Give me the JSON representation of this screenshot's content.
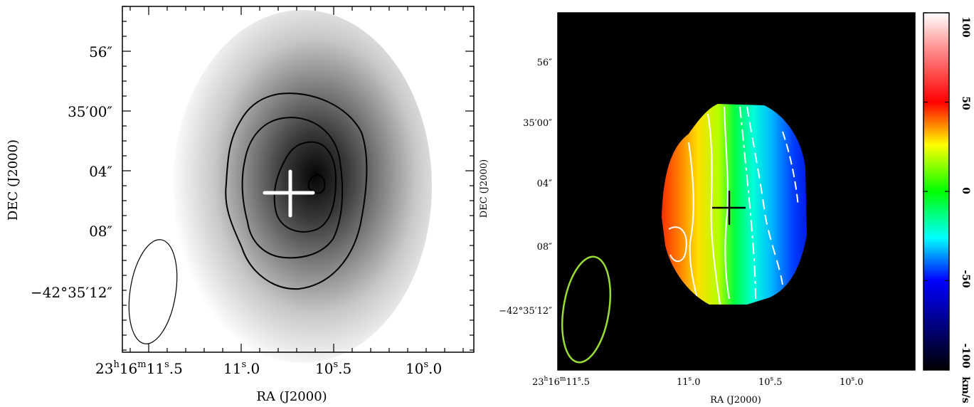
{
  "chart_data": [
    {
      "type": "heatmap",
      "panel": "left",
      "title": "",
      "xlabel": "RA (J2000)",
      "ylabel": "DEC (J2000)",
      "x_ticks": [
        {
          "value": "23h16m11.5s",
          "label": "23^h16^m11^s.5"
        },
        {
          "value": "23h16m11.0s",
          "label": "11^s.0"
        },
        {
          "value": "23h16m10.5s",
          "label": "10^s.5"
        },
        {
          "value": "23h16m10.0s",
          "label": "10^s.0"
        }
      ],
      "y_ticks": [
        {
          "value": "-42d34m56s",
          "label": "56″"
        },
        {
          "value": "-42d35m00s",
          "label": "35′ 00″"
        },
        {
          "value": "-42d35m04s",
          "label": "04″"
        },
        {
          "value": "-42d35m08s",
          "label": "08″"
        },
        {
          "value": "-42d35m12s",
          "label": "−42° 35′ 12″"
        }
      ],
      "image": "greyscale intensity, peak near the marked position",
      "contours": 4,
      "markers": [
        {
          "type": "cross",
          "ra": "23h16m10.70s",
          "dec": "-42d35m05.5s",
          "color": "#ffffff"
        }
      ],
      "beam": {
        "color": "#000000"
      },
      "grid": false
    },
    {
      "type": "heatmap",
      "panel": "right",
      "title": "",
      "xlabel": "RA (J2000)",
      "ylabel": "DEC (J2000)",
      "x_ticks": [
        {
          "value": "23h16m11.5s",
          "label": "23^h16^m11^s.5"
        },
        {
          "value": "23h16m11.0s",
          "label": "11^s.0"
        },
        {
          "value": "23h16m10.5s",
          "label": "10^s.5"
        },
        {
          "value": "23h16m10.0s",
          "label": "10^s.0"
        }
      ],
      "y_ticks": [
        {
          "value": "-42d34m56s",
          "label": "56″"
        },
        {
          "value": "-42d35m00s",
          "label": "35′ 00″"
        },
        {
          "value": "-42d35m04s",
          "label": "04″"
        },
        {
          "value": "-42d35m08s",
          "label": "08″"
        },
        {
          "value": "-42d35m12s",
          "label": "−42° 35′ 12″"
        }
      ],
      "colorbar": {
        "label": "km/s",
        "range": [
          -100,
          100
        ],
        "ticks": [
          {
            "value": 100,
            "label": "100"
          },
          {
            "value": 50,
            "label": "50"
          },
          {
            "value": 0,
            "label": "0"
          },
          {
            "value": -50,
            "label": "-50"
          },
          {
            "value": -100,
            "label": "-100"
          }
        ],
        "colors": [
          "#000000",
          "#0000ff",
          "#00ffff",
          "#00ff00",
          "#ffff00",
          "#ff0000",
          "#ffffff"
        ]
      },
      "gradient_direction": "velocity decreases from east (left) to west (right)",
      "background": "#000000",
      "markers": [
        {
          "type": "cross",
          "ra": "23h16m10.70s",
          "dec": "-42d35m05.5s",
          "color": "#000000"
        }
      ],
      "beam": {
        "color": "#99dd33"
      },
      "grid": false
    }
  ]
}
